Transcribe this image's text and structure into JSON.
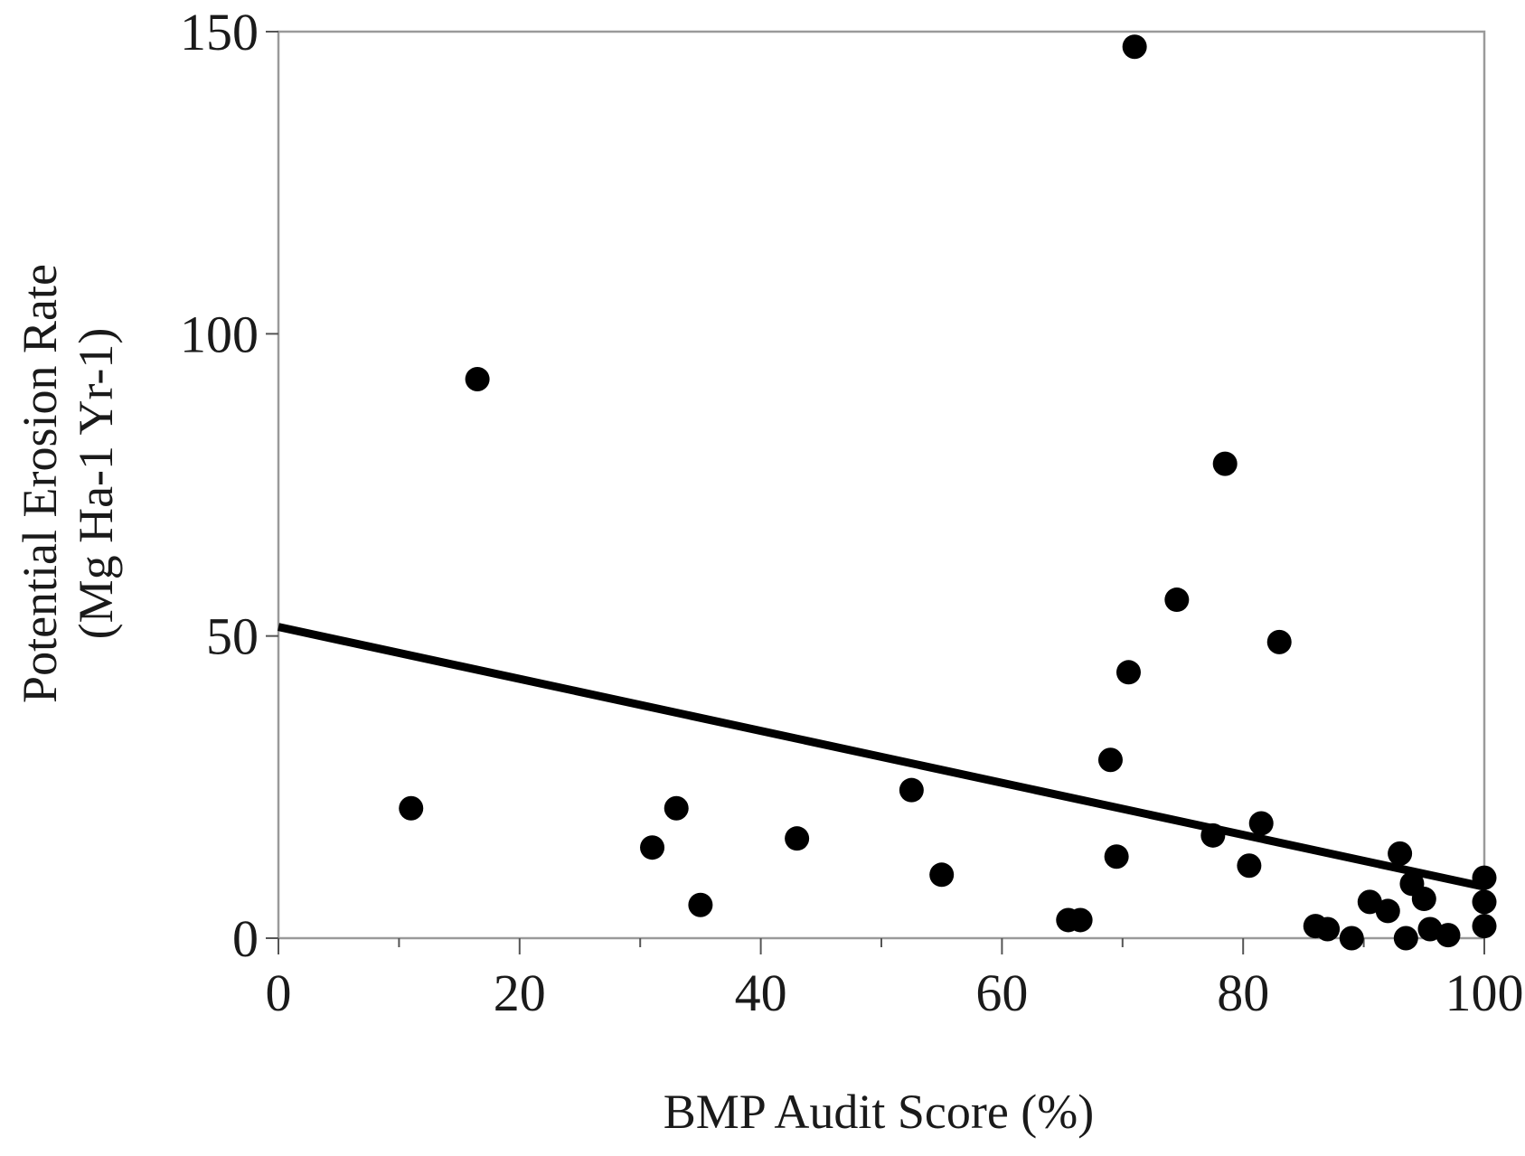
{
  "chart_data": {
    "type": "scatter",
    "xlabel": "BMP Audit Score (%)",
    "ylabel_line1": "Potential Erosion Rate",
    "ylabel_line2": "(Mg Ha-1 Yr-1)",
    "xlim": [
      0,
      100
    ],
    "ylim": [
      0,
      150
    ],
    "xticks": [
      0,
      20,
      40,
      60,
      80,
      100
    ],
    "xtick_labels": [
      "0",
      "20",
      "40",
      "60",
      "80",
      "100"
    ],
    "x_minor_ticks": [
      10,
      30,
      50,
      70,
      90
    ],
    "yticks": [
      0,
      50,
      100,
      150
    ],
    "ytick_labels": [
      "0",
      "50",
      "100",
      "150"
    ],
    "grid": false,
    "points": [
      {
        "x": 11,
        "y": 21.5
      },
      {
        "x": 16.5,
        "y": 92.5
      },
      {
        "x": 31,
        "y": 15
      },
      {
        "x": 33,
        "y": 21.5
      },
      {
        "x": 35,
        "y": 5.5
      },
      {
        "x": 43,
        "y": 16.5
      },
      {
        "x": 52.5,
        "y": 24.5
      },
      {
        "x": 55,
        "y": 10.5
      },
      {
        "x": 65.5,
        "y": 3
      },
      {
        "x": 66.5,
        "y": 3
      },
      {
        "x": 69,
        "y": 29.5
      },
      {
        "x": 69.5,
        "y": 13.5
      },
      {
        "x": 70.5,
        "y": 44
      },
      {
        "x": 71,
        "y": 147.5
      },
      {
        "x": 74.5,
        "y": 56
      },
      {
        "x": 77.5,
        "y": 17
      },
      {
        "x": 78.5,
        "y": 78.5
      },
      {
        "x": 80.5,
        "y": 12
      },
      {
        "x": 81.5,
        "y": 19
      },
      {
        "x": 83,
        "y": 49
      },
      {
        "x": 86,
        "y": 2
      },
      {
        "x": 87,
        "y": 1.5
      },
      {
        "x": 89,
        "y": 0
      },
      {
        "x": 90.5,
        "y": 6
      },
      {
        "x": 92,
        "y": 4.5
      },
      {
        "x": 93,
        "y": 14
      },
      {
        "x": 93.5,
        "y": 0
      },
      {
        "x": 94,
        "y": 9
      },
      {
        "x": 95,
        "y": 6.5
      },
      {
        "x": 95.5,
        "y": 1.5
      },
      {
        "x": 97,
        "y": 0.5
      },
      {
        "x": 100,
        "y": 10
      },
      {
        "x": 100,
        "y": 6
      },
      {
        "x": 100,
        "y": 2
      }
    ],
    "fit_line": {
      "x": [
        0,
        100
      ],
      "y": [
        51.5,
        8.5
      ]
    }
  }
}
